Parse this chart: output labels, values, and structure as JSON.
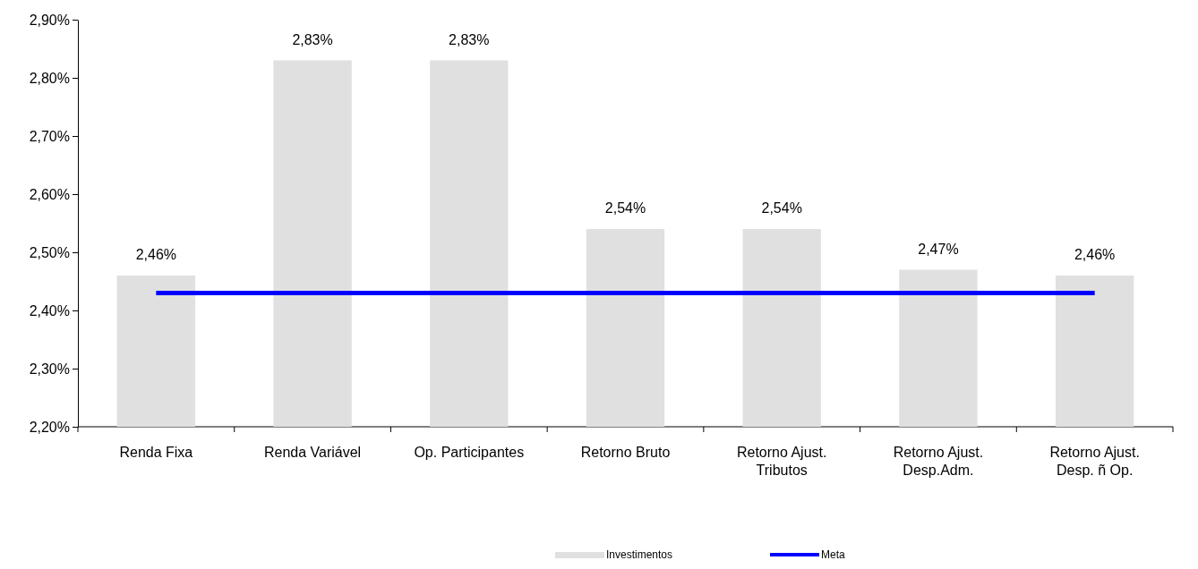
{
  "chart_data": {
    "type": "bar",
    "categories": [
      "Renda Fixa",
      "Renda Variável",
      "Op. Participantes",
      "Retorno Bruto",
      "Retorno Ajust. Tributos",
      "Retorno Ajust. Desp.Adm.",
      "Retorno Ajust. Desp. ñ Op."
    ],
    "series": [
      {
        "name": "Investimentos",
        "color": "#e0e0e0",
        "values": [
          2.46,
          2.83,
          2.83,
          2.54,
          2.54,
          2.47,
          2.46
        ],
        "value_labels": [
          "2,46%",
          "2,83%",
          "2,83%",
          "2,54%",
          "2,54%",
          "2,47%",
          "2,46%"
        ]
      },
      {
        "name": "Meta",
        "type": "line",
        "color": "#0000ff",
        "values": [
          2.43,
          2.43,
          2.43,
          2.43,
          2.43,
          2.43,
          2.43
        ]
      }
    ],
    "ylim": [
      2.2,
      2.9
    ],
    "yticks": [
      {
        "value": 2.2,
        "label": "2,20%"
      },
      {
        "value": 2.3,
        "label": "2,30%"
      },
      {
        "value": 2.4,
        "label": "2,40%"
      },
      {
        "value": 2.5,
        "label": "2,50%"
      },
      {
        "value": 2.6,
        "label": "2,60%"
      },
      {
        "value": 2.7,
        "label": "2,70%"
      },
      {
        "value": 2.8,
        "label": "2,80%"
      },
      {
        "value": 2.9,
        "label": "2,90%"
      }
    ],
    "grid": false,
    "legend": "bottom",
    "marker": "none",
    "line_style": "solid"
  }
}
